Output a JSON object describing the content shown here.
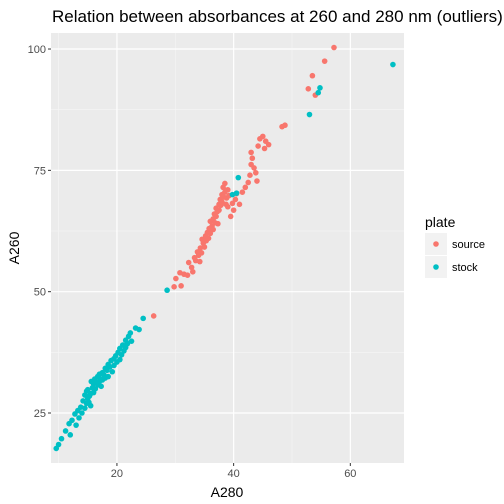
{
  "chart_data": {
    "type": "scatter",
    "title": "Relation between absorbances at 260 and 280 nm (outliers)",
    "xlabel": "A280",
    "ylabel": "A260",
    "xlim": [
      8.7,
      69.2
    ],
    "ylim": [
      14.7,
      103.3
    ],
    "x_ticks": [
      20,
      40,
      60
    ],
    "y_ticks": [
      25,
      50,
      75,
      100
    ],
    "x_minor_ticks": [
      10,
      30,
      50
    ],
    "y_minor_ticks": [
      37.5,
      62.5,
      87.5
    ],
    "grid": true,
    "background": "#ebebeb",
    "legend": {
      "title": "plate",
      "position": "right",
      "entries": [
        "source",
        "stock"
      ]
    },
    "series": [
      {
        "name": "source",
        "color": "#f8766d",
        "points": [
          [
            26.3,
            45.0
          ],
          [
            29.8,
            51.0
          ],
          [
            30.1,
            52.7
          ],
          [
            30.8,
            53.9
          ],
          [
            31.0,
            51.2
          ],
          [
            31.5,
            53.6
          ],
          [
            32.1,
            53.4
          ],
          [
            32.3,
            56.0
          ],
          [
            32.8,
            55.0
          ],
          [
            33.0,
            54.1
          ],
          [
            33.3,
            57.0
          ],
          [
            33.5,
            56.4
          ],
          [
            33.8,
            58.2
          ],
          [
            34.0,
            57.5
          ],
          [
            34.2,
            56.2
          ],
          [
            34.3,
            59.0
          ],
          [
            34.5,
            58.0
          ],
          [
            34.6,
            60.8
          ],
          [
            34.8,
            60.0
          ],
          [
            35.0,
            59.2
          ],
          [
            35.2,
            61.5
          ],
          [
            35.3,
            60.5
          ],
          [
            35.5,
            62.2
          ],
          [
            35.7,
            61.0
          ],
          [
            35.8,
            63.0
          ],
          [
            36.0,
            62.0
          ],
          [
            36.0,
            64.5
          ],
          [
            36.3,
            63.5
          ],
          [
            36.5,
            65.0
          ],
          [
            36.5,
            62.8
          ],
          [
            36.7,
            66.0
          ],
          [
            36.8,
            64.2
          ],
          [
            37.0,
            67.2
          ],
          [
            37.0,
            65.5
          ],
          [
            37.2,
            66.5
          ],
          [
            37.3,
            64.0
          ],
          [
            37.5,
            68.0
          ],
          [
            37.5,
            66.8
          ],
          [
            37.7,
            69.0
          ],
          [
            37.8,
            67.8
          ],
          [
            38.0,
            70.0
          ],
          [
            38.0,
            68.5
          ],
          [
            38.2,
            71.5
          ],
          [
            38.3,
            69.5
          ],
          [
            38.5,
            72.3
          ],
          [
            38.5,
            70.5
          ],
          [
            38.7,
            68.0
          ],
          [
            38.8,
            69.3
          ],
          [
            39.0,
            71.0
          ],
          [
            39.0,
            67.5
          ],
          [
            39.2,
            69.8
          ],
          [
            39.5,
            65.5
          ],
          [
            39.8,
            68.2
          ],
          [
            40.0,
            66.8
          ],
          [
            40.3,
            69.0
          ],
          [
            40.5,
            70.2
          ],
          [
            41.0,
            68.0
          ],
          [
            41.5,
            70.5
          ],
          [
            42.0,
            71.5
          ],
          [
            42.5,
            72.5
          ],
          [
            42.8,
            74.0
          ],
          [
            43.0,
            76.2
          ],
          [
            43.2,
            77.5
          ],
          [
            43.0,
            78.7
          ],
          [
            43.5,
            75.5
          ],
          [
            43.8,
            74.5
          ],
          [
            44.0,
            72.8
          ],
          [
            44.2,
            80.0
          ],
          [
            44.5,
            81.5
          ],
          [
            45.0,
            82.0
          ],
          [
            45.3,
            79.5
          ],
          [
            45.5,
            81.0
          ],
          [
            46.0,
            80.3
          ],
          [
            48.3,
            84.0
          ],
          [
            48.8,
            84.3
          ],
          [
            52.8,
            91.8
          ],
          [
            53.5,
            94.5
          ],
          [
            54.0,
            90.5
          ],
          [
            55.6,
            97.5
          ],
          [
            57.2,
            100.3
          ]
        ]
      },
      {
        "name": "stock",
        "color": "#00bfc4",
        "points": [
          [
            9.6,
            17.7
          ],
          [
            10.0,
            18.5
          ],
          [
            10.5,
            19.7
          ],
          [
            11.2,
            21.3
          ],
          [
            11.8,
            22.8
          ],
          [
            12.0,
            20.5
          ],
          [
            12.3,
            23.5
          ],
          [
            12.8,
            24.8
          ],
          [
            13.0,
            22.5
          ],
          [
            13.3,
            25.5
          ],
          [
            13.5,
            24.0
          ],
          [
            13.8,
            26.2
          ],
          [
            14.0,
            25.0
          ],
          [
            14.2,
            27.5
          ],
          [
            14.5,
            26.0
          ],
          [
            14.5,
            28.7
          ],
          [
            14.8,
            27.0
          ],
          [
            14.8,
            29.5
          ],
          [
            15.0,
            28.0
          ],
          [
            15.0,
            29.8
          ],
          [
            15.2,
            27.2
          ],
          [
            15.3,
            28.5
          ],
          [
            15.5,
            29.0
          ],
          [
            15.5,
            26.5
          ],
          [
            15.6,
            31.5
          ],
          [
            15.8,
            30.2
          ],
          [
            16.0,
            31.0
          ],
          [
            16.0,
            29.2
          ],
          [
            16.2,
            32.0
          ],
          [
            16.3,
            30.0
          ],
          [
            16.5,
            31.2
          ],
          [
            16.7,
            32.5
          ],
          [
            16.8,
            30.8
          ],
          [
            17.0,
            33.0
          ],
          [
            17.0,
            31.5
          ],
          [
            17.2,
            32.0
          ],
          [
            17.3,
            30.5
          ],
          [
            17.5,
            33.3
          ],
          [
            17.5,
            31.8
          ],
          [
            17.8,
            32.8
          ],
          [
            18.0,
            34.2
          ],
          [
            18.0,
            32.2
          ],
          [
            18.3,
            33.8
          ],
          [
            18.5,
            35.0
          ],
          [
            18.5,
            32.5
          ],
          [
            18.8,
            34.5
          ],
          [
            19.0,
            35.8
          ],
          [
            19.2,
            33.5
          ],
          [
            19.5,
            36.2
          ],
          [
            19.5,
            34.8
          ],
          [
            19.8,
            36.8
          ],
          [
            20.0,
            35.5
          ],
          [
            20.2,
            37.5
          ],
          [
            20.5,
            36.0
          ],
          [
            20.5,
            38.3
          ],
          [
            20.8,
            37.0
          ],
          [
            21.0,
            39.0
          ],
          [
            21.2,
            37.8
          ],
          [
            21.5,
            38.5
          ],
          [
            21.5,
            40.0
          ],
          [
            21.8,
            39.3
          ],
          [
            22.0,
            40.8
          ],
          [
            22.3,
            41.5
          ],
          [
            22.5,
            39.8
          ],
          [
            23.2,
            42.5
          ],
          [
            23.8,
            42.2
          ],
          [
            24.5,
            44.5
          ],
          [
            28.6,
            50.3
          ],
          [
            39.8,
            70.0
          ],
          [
            40.5,
            70.3
          ],
          [
            40.8,
            73.5
          ],
          [
            53.0,
            86.5
          ],
          [
            54.5,
            91.0
          ],
          [
            54.8,
            92.0
          ],
          [
            67.3,
            96.8
          ]
        ]
      }
    ]
  }
}
